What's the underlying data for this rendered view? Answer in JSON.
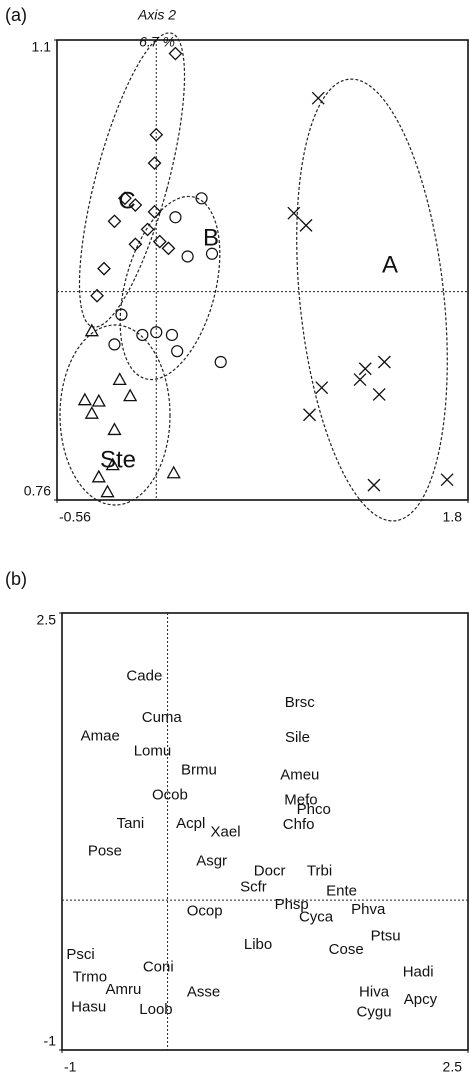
{
  "chart_data": [
    {
      "type": "scatter",
      "panel": "(a)",
      "ylabel": "Axis 2",
      "ylabel_note": "6.7 %",
      "xlim": [
        -0.56,
        1.8
      ],
      "xticks": [
        -0.56,
        1.8
      ],
      "ylim": [
        0.76,
        1.1
      ],
      "yticks": [
        0.76,
        1.1
      ],
      "vline": 0.01,
      "hline": 0.914,
      "series": [
        {
          "name": "A",
          "marker": "x",
          "color": "#111",
          "x": [
            0.94,
            0.8,
            0.87,
            1.21,
            1.32,
            1.18,
            1.29,
            0.96,
            0.89,
            1.26,
            1.68
          ],
          "y": [
            1.057,
            0.972,
            0.963,
            0.857,
            0.862,
            0.849,
            0.838,
            0.843,
            0.823,
            0.771,
            0.775
          ]
        },
        {
          "name": "B",
          "marker": "circle",
          "color": "#111",
          "x": [
            0.27,
            0.12,
            0.19,
            0.33,
            -0.19,
            -0.23,
            -0.07,
            0.01,
            0.1,
            0.13,
            0.38
          ],
          "y": [
            0.983,
            0.969,
            0.94,
            0.942,
            0.897,
            0.875,
            0.882,
            0.884,
            0.882,
            0.87,
            0.862
          ]
        },
        {
          "name": "C",
          "marker": "diamond",
          "color": "#111",
          "x": [
            0.12,
            0.01,
            0.0,
            -0.17,
            -0.11,
            0.0,
            -0.23,
            -0.04,
            0.03,
            -0.11,
            0.08,
            -0.29,
            -0.33
          ],
          "y": [
            1.09,
            1.03,
            1.009,
            0.983,
            0.978,
            0.973,
            0.966,
            0.96,
            0.951,
            0.949,
            0.946,
            0.931,
            0.911
          ]
        },
        {
          "name": "Ste",
          "marker": "triangle",
          "color": "#111",
          "x": [
            -0.36,
            -0.2,
            -0.14,
            -0.4,
            -0.32,
            -0.36,
            -0.23,
            -0.24,
            -0.32,
            -0.27,
            0.11
          ],
          "y": [
            0.885,
            0.849,
            0.837,
            0.834,
            0.833,
            0.824,
            0.812,
            0.786,
            0.777,
            0.766,
            0.78
          ]
        }
      ]
    },
    {
      "type": "scatter",
      "panel": "(b)",
      "xlim": [
        -1,
        2.5
      ],
      "xticks": [
        -1,
        2.5
      ],
      "ylim": [
        -1,
        2.5
      ],
      "yticks": [
        -1,
        2.5
      ],
      "vline": -0.09,
      "hline": 0.2,
      "labels": [
        "Cade",
        "Cuma",
        "Amae",
        "Lomu",
        "Brmu",
        "Ocob",
        "Tani",
        "Acpl",
        "Xael",
        "Asgr",
        "Pose",
        "Brsc",
        "Sile",
        "Ameu",
        "Mefo",
        "Phco",
        "Chfo",
        "Docr",
        "Trbi",
        "Scfr",
        "Ente",
        "Phsp",
        "Ocop",
        "Cyca",
        "Phva",
        "Ptsu",
        "Libo",
        "Cose",
        "Psci",
        "Coni",
        "Trmo",
        "Hadi",
        "Amru",
        "Asse",
        "Hiva",
        "Apcy",
        "Hasu",
        "Loob",
        "Cygu"
      ],
      "x": [
        -0.29,
        -0.14,
        -0.67,
        -0.22,
        0.18,
        -0.07,
        -0.41,
        0.11,
        0.41,
        0.29,
        -0.63,
        1.05,
        1.03,
        1.05,
        1.06,
        1.17,
        1.04,
        0.79,
        1.22,
        0.65,
        1.41,
        0.98,
        0.23,
        1.19,
        1.64,
        1.79,
        0.69,
        1.45,
        -0.84,
        -0.17,
        -0.76,
        2.07,
        -0.47,
        0.22,
        1.69,
        2.09,
        -0.77,
        -0.19,
        1.69
      ],
      "y": [
        1.99,
        1.66,
        1.51,
        1.39,
        1.24,
        1.04,
        0.81,
        0.81,
        0.74,
        0.51,
        0.59,
        1.78,
        1.5,
        1.2,
        1.0,
        0.92,
        0.8,
        0.43,
        0.43,
        0.3,
        0.27,
        0.16,
        0.11,
        0.06,
        0.12,
        -0.09,
        -0.16,
        -0.2,
        -0.24,
        -0.34,
        -0.42,
        -0.38,
        -0.52,
        -0.54,
        -0.54,
        -0.6,
        -0.66,
        -0.68,
        -0.7
      ]
    }
  ]
}
